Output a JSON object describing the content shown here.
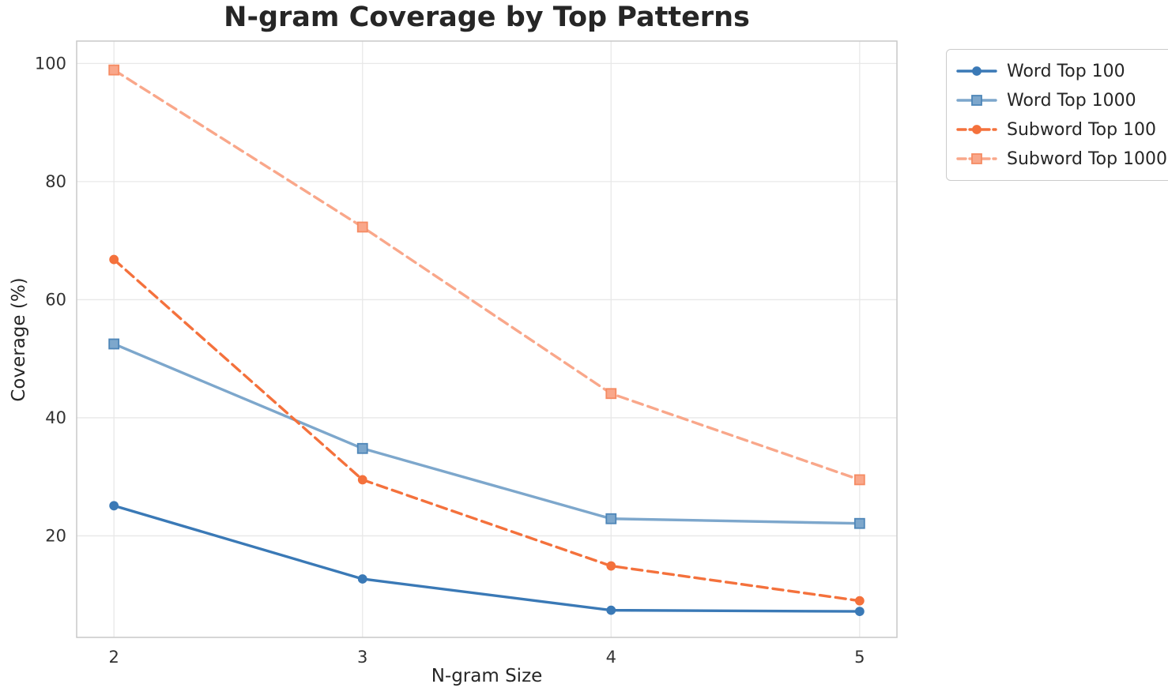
{
  "chart_data": {
    "type": "line",
    "title": "N-gram Coverage by Top Patterns",
    "xlabel": "N-gram Size",
    "ylabel": "Coverage (%)",
    "x": [
      2,
      3,
      4,
      5
    ],
    "xticks": [
      2,
      3,
      4,
      5
    ],
    "yticks": [
      20,
      40,
      60,
      80,
      100
    ],
    "xlim": [
      1.85,
      5.15
    ],
    "ylim": [
      2.8,
      103.8
    ],
    "grid": true,
    "legend_position": "outside-top-right",
    "series": [
      {
        "name": "Word Top 100",
        "values": [
          25.1,
          12.7,
          7.4,
          7.2
        ],
        "color": "#3A79B6",
        "edge_color": "#3A79B6",
        "line_style": "solid",
        "marker": "circle"
      },
      {
        "name": "Word Top 1000",
        "values": [
          52.5,
          34.8,
          22.9,
          22.1
        ],
        "color": "#7DA7CC",
        "edge_color": "#4E86B8",
        "line_style": "solid",
        "marker": "square"
      },
      {
        "name": "Subword Top 100",
        "values": [
          66.8,
          29.5,
          14.9,
          9.0
        ],
        "color": "#F4713C",
        "edge_color": "#F4713C",
        "line_style": "dashed",
        "marker": "circle"
      },
      {
        "name": "Subword Top 1000",
        "values": [
          98.9,
          72.3,
          44.1,
          29.5
        ],
        "color": "#F9A78A",
        "edge_color": "#F58B63",
        "line_style": "dashed",
        "marker": "square"
      }
    ]
  }
}
